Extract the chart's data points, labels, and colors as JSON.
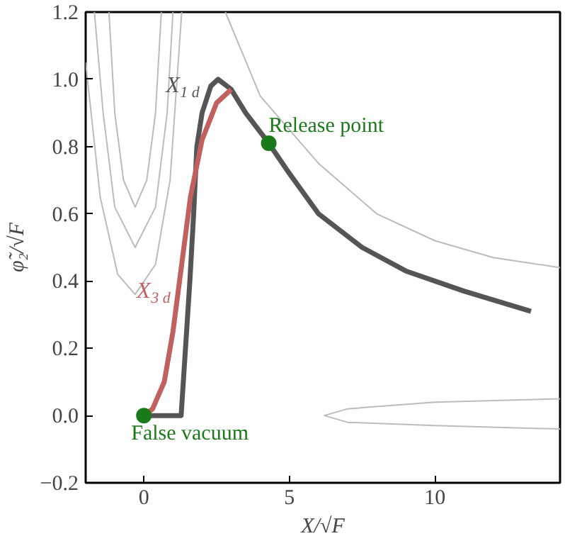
{
  "chart_data": {
    "type": "line",
    "xlabel": "X/√F",
    "ylabel": "φ̃₂/√F",
    "xlim": [
      -2,
      14.3
    ],
    "ylim": [
      -0.2,
      1.2
    ],
    "xticks": [
      0,
      5,
      10
    ],
    "yticks": [
      {
        "value": -0.2,
        "label": "−0.2"
      },
      {
        "value": 0,
        "label": "0.0"
      },
      0.2,
      0.4,
      0.6,
      0.8,
      {
        "value": 1,
        "label": "1.0"
      },
      1.2
    ],
    "grid": false,
    "legend": false,
    "marker": "none",
    "line_style": "solid",
    "series": [
      {
        "color": "#bbbbbb",
        "x": [
          -1.2,
          -1.0,
          -0.7,
          -0.3,
          0.1,
          0.4,
          0.6
        ],
        "values": [
          1.2,
          0.9,
          0.7,
          0.62,
          0.7,
          0.9,
          1.2
        ]
      },
      {
        "color": "#bbbbbb",
        "x": [
          -1.7,
          -1.4,
          -1.0,
          -0.3,
          0.4,
          0.8,
          1.0
        ],
        "values": [
          1.2,
          0.9,
          0.62,
          0.5,
          0.62,
          0.9,
          1.2
        ]
      },
      {
        "color": "#bbbbbb",
        "x": [
          -2,
          -1.5,
          -0.9,
          -0.3,
          0.4,
          0.9,
          1.3
        ],
        "values": [
          1.05,
          0.65,
          0.42,
          0.36,
          0.45,
          0.7,
          1.2
        ]
      },
      {
        "color": "#bbbbbb",
        "x": [
          14.3,
          10,
          7,
          6.2,
          7,
          10,
          14.3
        ],
        "values": [
          0.05,
          0.04,
          0.02,
          0.0,
          -0.02,
          -0.03,
          -0.04
        ]
      },
      {
        "color": "#bbbbbb",
        "x": [
          2.8,
          4,
          6,
          8,
          10,
          12,
          14.3
        ],
        "values": [
          1.2,
          0.95,
          0.75,
          0.6,
          0.52,
          0.47,
          0.44
        ]
      },
      {
        "name": "X$_{1 d}$",
        "color": "#555555",
        "x": [
          0,
          1.28,
          1.58,
          1.71,
          1.82,
          2.0,
          2.3,
          2.55,
          3.0,
          3.5,
          4.29,
          5,
          6,
          7.5,
          9,
          11,
          13.3
        ],
        "values": [
          0,
          0,
          0.4,
          0.6,
          0.8,
          0.9,
          0.98,
          1.0,
          0.97,
          0.9,
          0.81,
          0.72,
          0.6,
          0.5,
          0.43,
          0.37,
          0.31
        ]
      },
      {
        "name": "X$_{3 d}$",
        "color": "#c0605f",
        "x": [
          0,
          0.3,
          0.7,
          1.0,
          1.3,
          1.6,
          2.0,
          2.5,
          3.0
        ],
        "values": [
          0,
          0.02,
          0.1,
          0.25,
          0.45,
          0.65,
          0.82,
          0.93,
          0.97
        ]
      },
      {
        "type": "scatter",
        "marker": "circle",
        "name": "False vacuum",
        "color": "#1a7a1a",
        "x": [
          0
        ],
        "values": [
          0
        ]
      },
      {
        "type": "scatter",
        "marker": "circle",
        "name": "Release point",
        "color": "#1a7a1a",
        "x": [
          4.29
        ],
        "values": [
          0.81
        ]
      }
    ]
  }
}
